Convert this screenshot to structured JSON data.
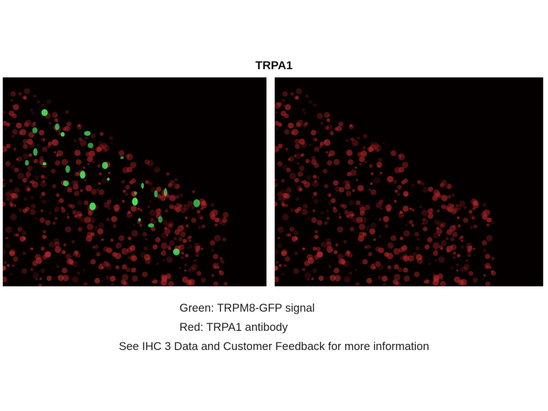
{
  "figure": {
    "title": "TRPA1",
    "captions": {
      "green": "Green: TRPM8-GFP signal",
      "red": "Red: TRPA1 antibody",
      "note": "See IHC 3 Data and Customer Feedback for more information"
    },
    "panels": [
      {
        "channels": [
          "green",
          "red"
        ],
        "content": "merged fluorescence micrograph"
      },
      {
        "channels": [
          "red"
        ],
        "content": "red channel fluorescence micrograph"
      }
    ],
    "colors": {
      "background": "#050000",
      "red_signal": "#c0282a",
      "green_signal": "#4be05a"
    }
  }
}
